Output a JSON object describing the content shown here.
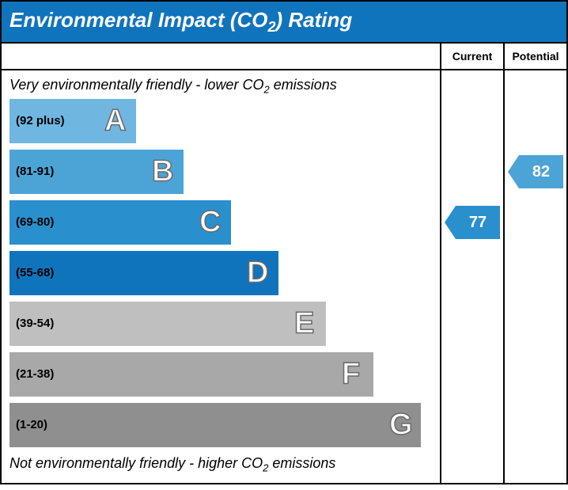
{
  "title": "Environmental Impact (CO₂) Rating",
  "title_bg": "#1074bc",
  "title_color": "#ffffff",
  "headers": {
    "current": "Current",
    "potential": "Potential"
  },
  "caption_top": "Very environmentally friendly - lower CO₂ emissions",
  "caption_bottom": "Not environmentally friendly - higher CO₂ emissions",
  "chart": {
    "band_height": 56,
    "band_gap": 8,
    "base_width": 160,
    "width_step": 60,
    "letter_offset_from_right": 40,
    "bands": [
      {
        "letter": "A",
        "range": "(92 plus)",
        "color": "#6fb7e0"
      },
      {
        "letter": "B",
        "range": "(81-91)",
        "color": "#4ca3d6"
      },
      {
        "letter": "C",
        "range": "(69-80)",
        "color": "#2a8fcd"
      },
      {
        "letter": "D",
        "range": "(55-68)",
        "color": "#1074bc"
      },
      {
        "letter": "E",
        "range": "(39-54)",
        "color": "#bfbfbf"
      },
      {
        "letter": "F",
        "range": "(21-38)",
        "color": "#a8a8a8"
      },
      {
        "letter": "G",
        "range": "(1-20)",
        "color": "#8f8f8f"
      }
    ]
  },
  "current": {
    "value": 77,
    "band_index": 2,
    "color": "#2a8fcd"
  },
  "potential": {
    "value": 82,
    "band_index": 1,
    "color": "#4ca3d6"
  }
}
